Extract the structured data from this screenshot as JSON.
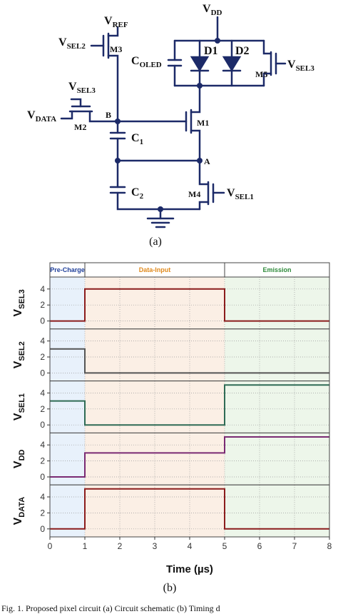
{
  "circuit": {
    "labels": [
      {
        "text": "V",
        "sub": "DD"
      },
      {
        "text": "V",
        "sub": "REF"
      },
      {
        "text": "V",
        "sub": "SEL2"
      },
      {
        "text": "M3"
      },
      {
        "text": "C",
        "sub": "OLED"
      },
      {
        "text": "D1"
      },
      {
        "text": "D2"
      },
      {
        "text": "M5"
      },
      {
        "text": "V",
        "sub": "SEL3"
      },
      {
        "text": "V",
        "sub": "SEL3"
      },
      {
        "text": "V",
        "sub": "DATA"
      },
      {
        "text": "M2"
      },
      {
        "text": "B"
      },
      {
        "text": "M1"
      },
      {
        "text": "C",
        "sub": "1"
      },
      {
        "text": "A"
      },
      {
        "text": "C",
        "sub": "2"
      },
      {
        "text": "M4"
      },
      {
        "text": "V",
        "sub": "SEL1"
      }
    ],
    "caption": "(a)"
  },
  "timing": {
    "phases": [
      {
        "label": "Pre-Charge",
        "start": 0,
        "end": 1,
        "color": "#e8f1fb",
        "label_color": "#1f3f9a"
      },
      {
        "label": "Data-Input",
        "start": 1,
        "end": 5,
        "color": "#fbefe5",
        "label_color": "#e08a1e"
      },
      {
        "label": "Emission",
        "start": 5,
        "end": 8,
        "color": "#edf6ea",
        "label_color": "#2e8a3a"
      }
    ],
    "x_label": "Time (µs)",
    "caption": "(b)",
    "figure_caption": "Fig. 1. Proposed pixel circuit (a) Circuit schematic (b) Timing d"
  },
  "chart_data": [
    {
      "type": "line",
      "ylabel": {
        "text": "V",
        "sub": "SEL3"
      },
      "x": [
        0,
        1,
        1,
        5,
        5,
        8
      ],
      "values": [
        0,
        0,
        4,
        4,
        0,
        0
      ],
      "color": "#8b1c1c",
      "xlim": [
        0,
        8
      ],
      "xticks": [
        0,
        1,
        2,
        3,
        4,
        5,
        6,
        7,
        8
      ],
      "ylim": [
        -1,
        5.5
      ],
      "yticks": [
        0,
        2,
        4
      ],
      "grid": true
    },
    {
      "type": "line",
      "ylabel": {
        "text": "V",
        "sub": "SEL2"
      },
      "x": [
        0,
        1,
        1,
        5,
        5,
        8
      ],
      "values": [
        3,
        3,
        0,
        0,
        0,
        0
      ],
      "color": "#555555",
      "xlim": [
        0,
        8
      ],
      "xticks": [
        0,
        1,
        2,
        3,
        4,
        5,
        6,
        7,
        8
      ],
      "ylim": [
        -1,
        5.5
      ],
      "yticks": [
        0,
        2,
        4
      ],
      "grid": true
    },
    {
      "type": "line",
      "ylabel": {
        "text": "V",
        "sub": "SEL1"
      },
      "x": [
        0,
        1,
        1,
        5,
        5,
        8
      ],
      "values": [
        3,
        3,
        0,
        0,
        5,
        5
      ],
      "color": "#2f6b55",
      "xlim": [
        0,
        8
      ],
      "xticks": [
        0,
        1,
        2,
        3,
        4,
        5,
        6,
        7,
        8
      ],
      "ylim": [
        -1,
        5.5
      ],
      "yticks": [
        0,
        2,
        4
      ],
      "grid": true
    },
    {
      "type": "line",
      "ylabel": {
        "text": "V",
        "sub": "DD"
      },
      "x": [
        0,
        1,
        1,
        5,
        5,
        8
      ],
      "values": [
        0,
        0,
        3,
        3,
        5,
        5
      ],
      "color": "#7a2a73",
      "xlim": [
        0,
        8
      ],
      "xticks": [
        0,
        1,
        2,
        3,
        4,
        5,
        6,
        7,
        8
      ],
      "ylim": [
        -1,
        5.5
      ],
      "yticks": [
        0,
        2,
        4
      ],
      "grid": true
    },
    {
      "type": "line",
      "ylabel": {
        "text": "V",
        "sub": "DATA"
      },
      "x": [
        0,
        1,
        1,
        5,
        5,
        8
      ],
      "values": [
        0,
        0,
        5,
        5,
        0,
        0
      ],
      "color": "#8b1c1c",
      "xlim": [
        0,
        8
      ],
      "xticks": [
        0,
        1,
        2,
        3,
        4,
        5,
        6,
        7,
        8
      ],
      "ylim": [
        -1,
        5.5
      ],
      "yticks": [
        0,
        2,
        4
      ],
      "grid": true
    }
  ]
}
